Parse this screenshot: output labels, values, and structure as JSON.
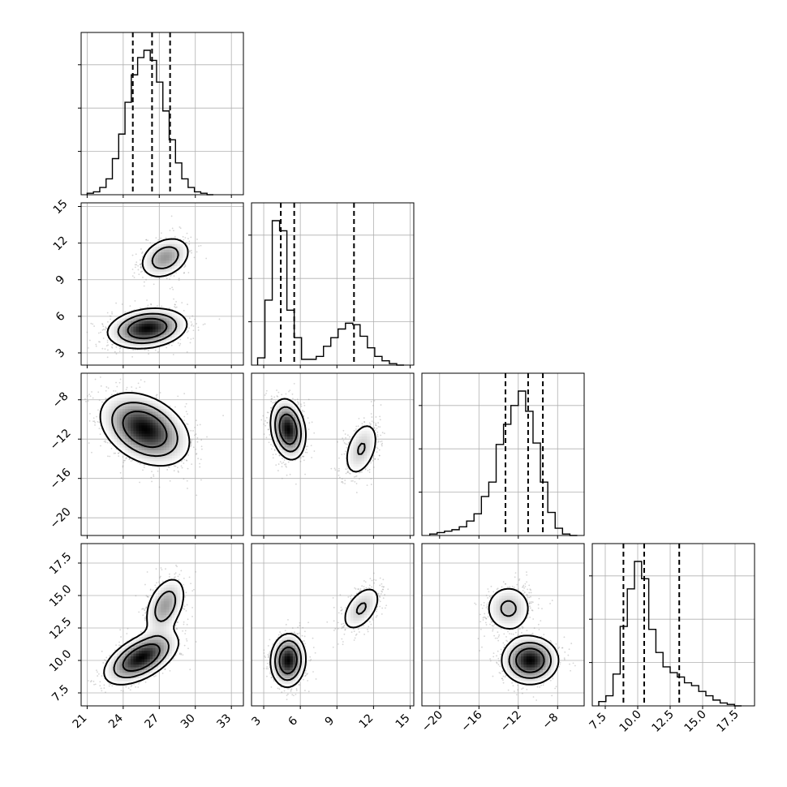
{
  "chart_data": {
    "type": "corner",
    "n_params": 4,
    "params": [
      {
        "index": 0,
        "range": [
          20.5,
          34.0
        ],
        "ticks": [
          21,
          24,
          27,
          30,
          33
        ],
        "tick_labels": [
          "21",
          "24",
          "27",
          "30",
          "33"
        ]
      },
      {
        "index": 1,
        "range": [
          2.0,
          15.3
        ],
        "ticks": [
          3,
          6,
          9,
          12,
          15
        ],
        "tick_labels": [
          "3",
          "6",
          "9",
          "12",
          "15"
        ]
      },
      {
        "index": 2,
        "range": [
          -21.8,
          -5.3
        ],
        "ticks": [
          -20,
          -16,
          -12,
          -8
        ],
        "tick_labels": [
          "−20",
          "−16",
          "−12",
          "−8"
        ]
      },
      {
        "index": 3,
        "range": [
          6.5,
          19.0
        ],
        "ticks": [
          7.5,
          10.0,
          12.5,
          15.0,
          17.5
        ],
        "tick_labels": [
          "7.5",
          "10.0",
          "12.5",
          "15.0",
          "17.5"
        ]
      }
    ],
    "histograms": [
      {
        "param": 0,
        "quantiles": [
          24.8,
          26.4,
          27.9
        ],
        "bins_range": [
          21.0,
          31.5
        ],
        "counts": [
          0.01,
          0.02,
          0.05,
          0.11,
          0.25,
          0.42,
          0.64,
          0.83,
          0.95,
          1.0,
          0.93,
          0.78,
          0.58,
          0.38,
          0.22,
          0.11,
          0.05,
          0.02,
          0.01,
          0.0
        ]
      },
      {
        "param": 1,
        "quantiles": [
          4.4,
          5.5,
          10.4
        ],
        "bins_range": [
          2.5,
          14.5
        ],
        "counts": [
          0.05,
          0.45,
          1.0,
          0.93,
          0.38,
          0.19,
          0.04,
          0.04,
          0.06,
          0.13,
          0.19,
          0.25,
          0.29,
          0.28,
          0.2,
          0.12,
          0.06,
          0.03,
          0.01,
          0.0
        ]
      },
      {
        "param": 2,
        "quantiles": [
          -13.3,
          -11.0,
          -9.5
        ],
        "bins_range": [
          -21.0,
          -6.0
        ],
        "counts": [
          0.01,
          0.02,
          0.03,
          0.04,
          0.06,
          0.1,
          0.15,
          0.27,
          0.37,
          0.63,
          0.77,
          0.9,
          1.0,
          0.86,
          0.64,
          0.37,
          0.16,
          0.05,
          0.01,
          0.0
        ]
      },
      {
        "param": 3,
        "quantiles": [
          8.9,
          10.5,
          13.2
        ],
        "bins_range": [
          7.0,
          18.0
        ],
        "counts": [
          0.03,
          0.07,
          0.22,
          0.55,
          0.81,
          1.0,
          0.88,
          0.53,
          0.37,
          0.27,
          0.23,
          0.2,
          0.16,
          0.14,
          0.1,
          0.07,
          0.04,
          0.02,
          0.01,
          0.0
        ]
      }
    ],
    "pairs": [
      {
        "x": 0,
        "y": 1,
        "modes": [
          {
            "center": [
              26.0,
              5.0
            ],
            "sd": [
              1.6,
              0.8
            ],
            "rho": 0.2,
            "weight": 0.72
          },
          {
            "center": [
              27.5,
              10.8
            ],
            "sd": [
              1.1,
              0.9
            ],
            "rho": 0.3,
            "weight": 0.28
          }
        ]
      },
      {
        "x": 0,
        "y": 2,
        "modes": [
          {
            "center": [
              25.8,
              -11.0
            ],
            "sd": [
              1.8,
              1.8
            ],
            "rho": -0.35,
            "weight": 1.0
          }
        ]
      },
      {
        "x": 1,
        "y": 2,
        "modes": [
          {
            "center": [
              5.0,
              -11.0
            ],
            "sd": [
              0.7,
              1.5
            ],
            "rho": -0.2,
            "weight": 0.72
          },
          {
            "center": [
              11.0,
              -13.0
            ],
            "sd": [
              0.8,
              1.6
            ],
            "rho": 0.4,
            "weight": 0.28
          }
        ]
      },
      {
        "x": 0,
        "y": 3,
        "modes": [
          {
            "center": [
              25.5,
              10.2
            ],
            "sd": [
              1.5,
              1.0
            ],
            "rho": 0.55,
            "weight": 0.72
          },
          {
            "center": [
              27.5,
              14.2
            ],
            "sd": [
              0.9,
              1.2
            ],
            "rho": 0.4,
            "weight": 0.28
          }
        ]
      },
      {
        "x": 1,
        "y": 3,
        "modes": [
          {
            "center": [
              5.0,
              10.0
            ],
            "sd": [
              0.7,
              1.0
            ],
            "rho": 0.05,
            "weight": 0.72
          },
          {
            "center": [
              11.0,
              14.0
            ],
            "sd": [
              0.9,
              1.0
            ],
            "rho": 0.5,
            "weight": 0.28
          }
        ]
      },
      {
        "x": 2,
        "y": 3,
        "modes": [
          {
            "center": [
              -10.8,
              10.0
            ],
            "sd": [
              1.4,
              0.9
            ],
            "rho": 0.0,
            "weight": 0.72
          },
          {
            "center": [
              -13.0,
              14.0
            ],
            "sd": [
              1.3,
              1.0
            ],
            "rho": 0.0,
            "weight": 0.28
          }
        ]
      }
    ],
    "grid": true
  }
}
